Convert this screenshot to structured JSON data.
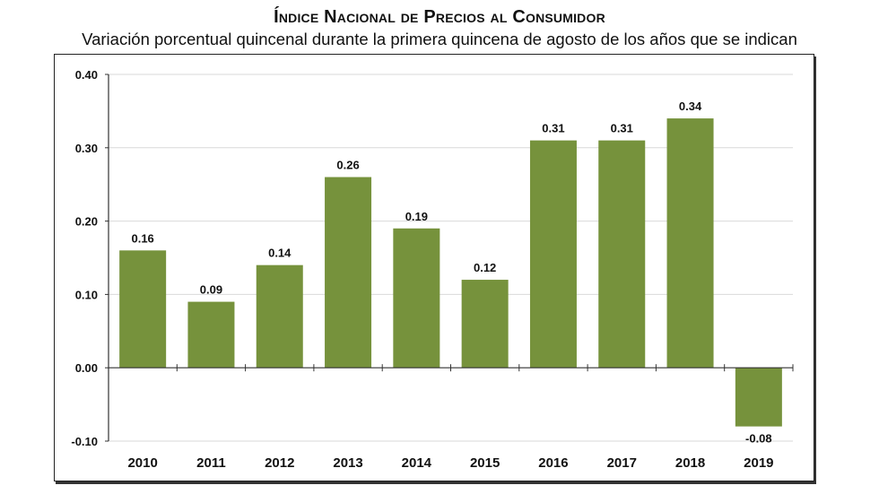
{
  "chart_data": {
    "type": "bar",
    "title": "Índice Nacional de Precios al Consumidor",
    "subtitle": "Variación porcentual quincenal durante la primera quincena de agosto de los años que se indican",
    "categories": [
      "2010",
      "2011",
      "2012",
      "2013",
      "2014",
      "2015",
      "2016",
      "2017",
      "2018",
      "2019"
    ],
    "values": [
      0.16,
      0.09,
      0.14,
      0.26,
      0.19,
      0.12,
      0.31,
      0.31,
      0.34,
      -0.08
    ],
    "data_labels": [
      "0.16",
      "0.09",
      "0.14",
      "0.26",
      "0.19",
      "0.12",
      "0.31",
      "0.31",
      "0.34",
      "-0.08"
    ],
    "yticks": [
      "0.40",
      "0.30",
      "0.20",
      "0.10",
      "0.00",
      "-0.10"
    ],
    "ytick_values": [
      0.4,
      0.3,
      0.2,
      0.1,
      0.0,
      -0.1
    ],
    "ylim": [
      -0.1,
      0.4
    ],
    "xlabel": "",
    "ylabel": "",
    "grid": true,
    "legend": "none",
    "bar_color": "#76923c",
    "grid_color": "#d9d9d9"
  }
}
